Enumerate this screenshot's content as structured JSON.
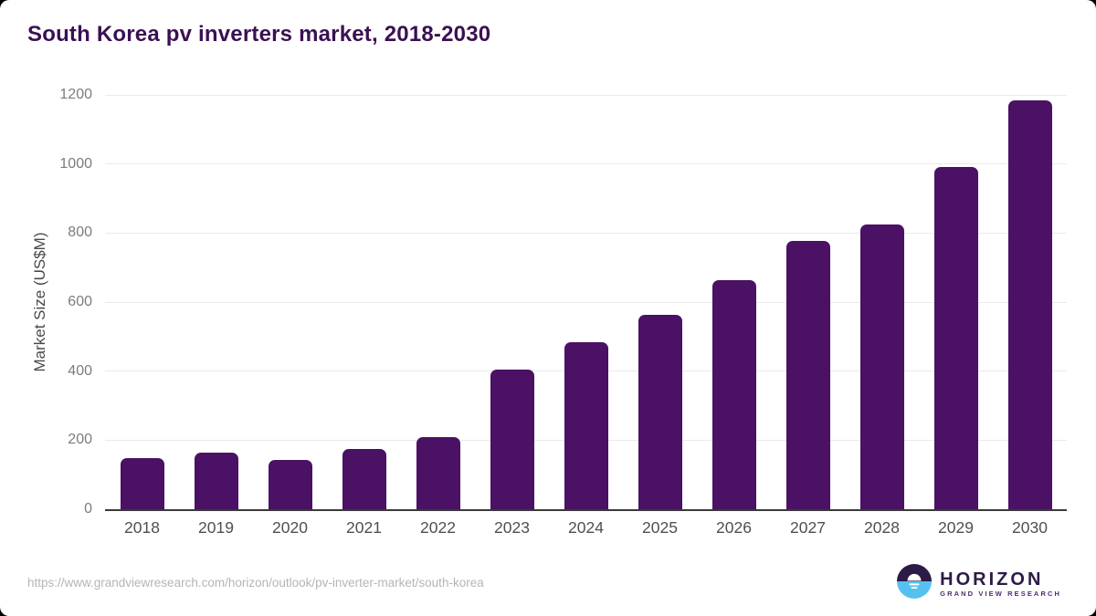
{
  "title": "South Korea pv inverters market, 2018-2030",
  "chart_data": {
    "type": "bar",
    "title": "South Korea pv inverters market, 2018-2030",
    "categories": [
      "2018",
      "2019",
      "2020",
      "2021",
      "2022",
      "2023",
      "2024",
      "2025",
      "2026",
      "2027",
      "2028",
      "2029",
      "2030"
    ],
    "values": [
      148,
      165,
      142,
      175,
      208,
      405,
      484,
      564,
      664,
      778,
      826,
      990,
      1185
    ],
    "xlabel": "",
    "ylabel": "Market Size (US$M)",
    "ylim": [
      0,
      1200
    ],
    "yticks": [
      0,
      200,
      400,
      600,
      800,
      1000,
      1200
    ],
    "grid": true,
    "legend": "none",
    "bar_color": "#4a1164"
  },
  "colors": {
    "title_text": "#3b1053",
    "bar": "#4a1164",
    "axis_line": "#3a3a3a",
    "gridline": "#eaeaea",
    "y_tick_label": "#7c7c7c",
    "x_tick_label": "#4f4f4f",
    "url_text": "#b5b5b5",
    "logo_dark_purple": "#2d1b47",
    "logo_blue": "#56c1ef"
  },
  "footer": {
    "source_url": "https://www.grandviewresearch.com/horizon/outlook/pv-inverter-market/south-korea",
    "logo": {
      "name": "HORIZON",
      "subtext": "GRAND VIEW RESEARCH",
      "icon": "horizon-sun-over-water-icon"
    }
  }
}
